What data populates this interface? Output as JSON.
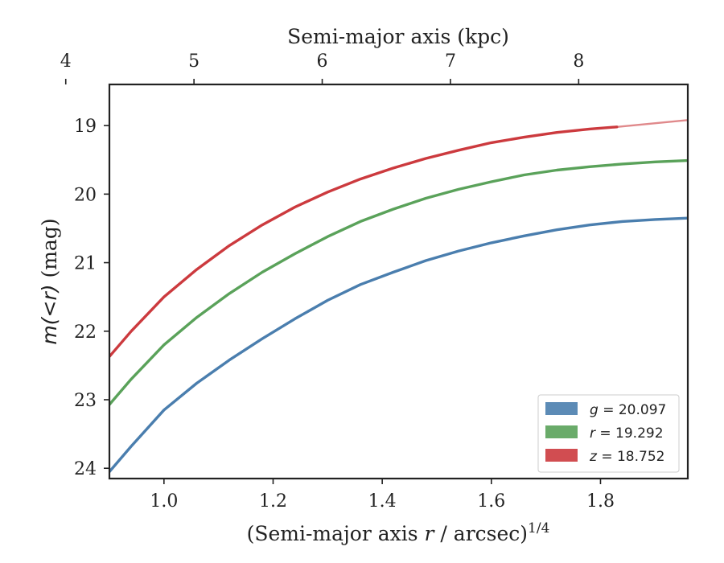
{
  "chart_data": {
    "type": "line",
    "xlabel_prefix": "(Semi-major axis ",
    "xlabel_var": "r",
    "xlabel_suffix": " / arcsec)",
    "xlabel_sup": "1/4",
    "ylabel_var": "m(<r)",
    "ylabel_unit": " (mag)",
    "top_xlabel": "Semi-major axis (kpc)",
    "xlim": [
      0.9,
      1.96
    ],
    "ylim": [
      24.15,
      18.4
    ],
    "y_inverted": true,
    "x_ticks": [
      1.0,
      1.2,
      1.4,
      1.6,
      1.8
    ],
    "x_tick_labels": [
      "1.0",
      "1.2",
      "1.4",
      "1.6",
      "1.8"
    ],
    "y_ticks": [
      19,
      20,
      21,
      22,
      23,
      24
    ],
    "y_tick_labels": [
      "19",
      "20",
      "21",
      "22",
      "23",
      "24"
    ],
    "top_x_ticks": [
      4,
      5,
      6,
      7,
      8
    ],
    "top_x_tick_labels": [
      "4",
      "5",
      "6",
      "7",
      "8"
    ],
    "top_x_tick_positions": [
      0.82,
      1.055,
      1.29,
      1.525,
      1.76
    ],
    "legend_position": "lower-right",
    "series": [
      {
        "name_var": "g",
        "name_value": " = 20.097",
        "color": "#4a7eae",
        "x": [
          0.9,
          0.94,
          1.0,
          1.06,
          1.12,
          1.18,
          1.24,
          1.3,
          1.36,
          1.42,
          1.48,
          1.54,
          1.6,
          1.66,
          1.72,
          1.78,
          1.84,
          1.9,
          1.96
        ],
        "y": [
          24.05,
          23.68,
          23.15,
          22.76,
          22.42,
          22.11,
          21.82,
          21.55,
          21.32,
          21.14,
          20.97,
          20.83,
          20.71,
          20.61,
          20.52,
          20.45,
          20.4,
          20.37,
          20.35
        ]
      },
      {
        "name_var": "r",
        "name_value": " = 19.292",
        "color": "#5aa25a",
        "x": [
          0.9,
          0.94,
          1.0,
          1.06,
          1.12,
          1.18,
          1.24,
          1.3,
          1.36,
          1.42,
          1.48,
          1.54,
          1.6,
          1.66,
          1.72,
          1.78,
          1.84,
          1.9,
          1.96
        ],
        "y": [
          23.07,
          22.7,
          22.2,
          21.8,
          21.45,
          21.14,
          20.87,
          20.62,
          20.4,
          20.22,
          20.06,
          19.93,
          19.82,
          19.72,
          19.65,
          19.6,
          19.56,
          19.53,
          19.51
        ]
      },
      {
        "name_var": "z",
        "name_value": " = 18.752",
        "color": "#cc3a3e",
        "x": [
          0.9,
          0.94,
          1.0,
          1.06,
          1.12,
          1.18,
          1.24,
          1.3,
          1.36,
          1.42,
          1.48,
          1.54,
          1.6,
          1.66,
          1.72,
          1.78,
          1.83
        ],
        "y": [
          22.37,
          22.0,
          21.5,
          21.1,
          20.75,
          20.45,
          20.19,
          19.97,
          19.78,
          19.62,
          19.48,
          19.36,
          19.25,
          19.17,
          19.1,
          19.05,
          19.02
        ],
        "ext_x": [
          1.83,
          1.96
        ],
        "ext_y": [
          19.02,
          18.92
        ]
      }
    ]
  }
}
